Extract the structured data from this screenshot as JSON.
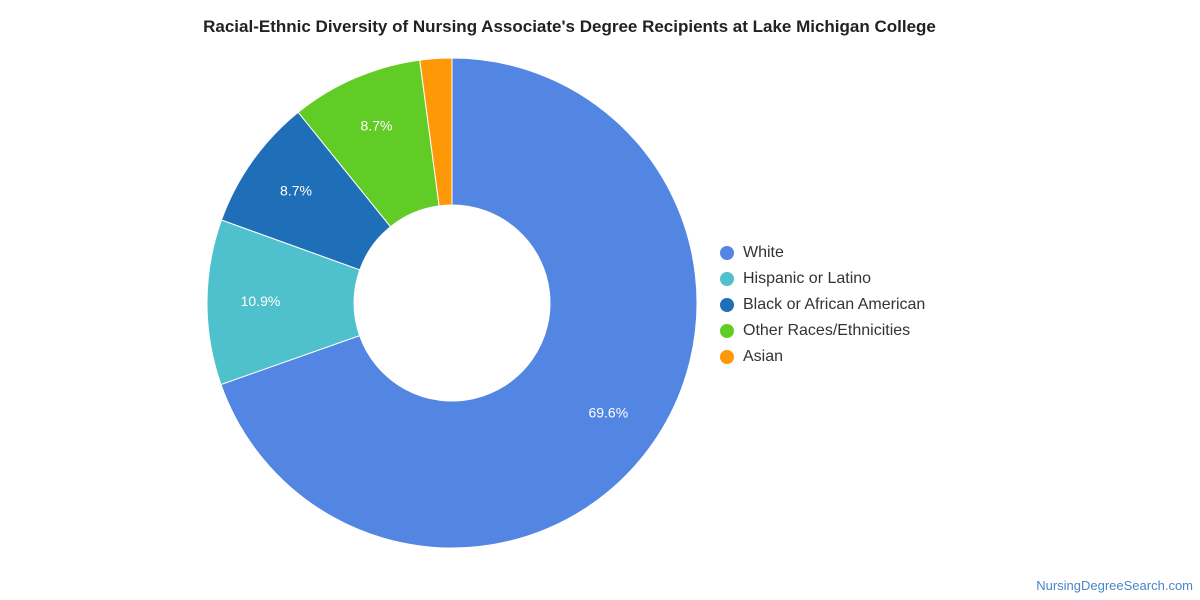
{
  "chart_data": {
    "type": "pie",
    "donut": true,
    "title": "Racial-Ethnic Diversity of Nursing Associate's Degree Recipients at Lake Michigan College",
    "categories": [
      "White",
      "Hispanic or Latino",
      "Black or African American",
      "Other Races/Ethnicities",
      "Asian"
    ],
    "values": [
      69.6,
      10.9,
      8.7,
      8.7,
      2.1
    ],
    "data_labels": [
      "69.6%",
      "10.9%",
      "8.7%",
      "8.7%",
      ""
    ],
    "colors": [
      "#5385e3",
      "#4fc1cc",
      "#1e6fb7",
      "#62cc26",
      "#ff9806"
    ],
    "legend_position": "right"
  },
  "credit": "NursingDegreeSearch.com"
}
